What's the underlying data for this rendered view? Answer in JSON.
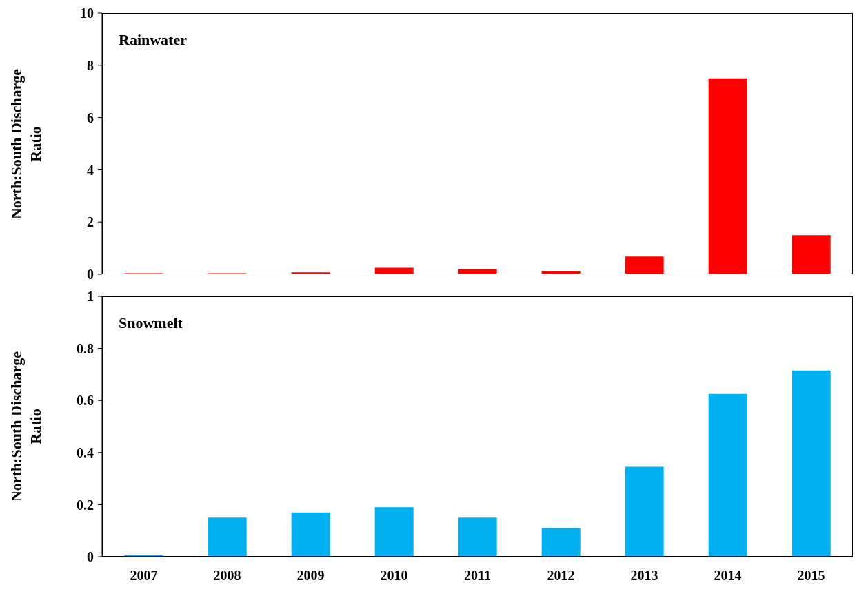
{
  "chart_data": [
    {
      "type": "bar",
      "annotations": [
        "Rainwater"
      ],
      "ylabel": "North:South Discharge Ratio",
      "categories": [
        "2007",
        "2008",
        "2009",
        "2010",
        "2011",
        "2012",
        "2013",
        "2014",
        "2015"
      ],
      "values": [
        0.04,
        0.04,
        0.07,
        0.25,
        0.2,
        0.12,
        0.68,
        7.5,
        1.5
      ],
      "color": "#ff0000",
      "ylim": [
        0,
        10
      ],
      "yticks": [
        0,
        2,
        4,
        6,
        8,
        10
      ],
      "grid": false,
      "tick_labels": "y"
    },
    {
      "type": "bar",
      "annotations": [
        "Snowmelt"
      ],
      "ylabel": "North:South Discharge Ratio",
      "categories": [
        "2007",
        "2008",
        "2009",
        "2010",
        "2011",
        "2012",
        "2013",
        "2014",
        "2015"
      ],
      "values": [
        0.005,
        0.15,
        0.17,
        0.19,
        0.15,
        0.11,
        0.345,
        0.625,
        0.715
      ],
      "color": "#00b0f0",
      "ylim": [
        0,
        1
      ],
      "yticks": [
        0,
        0.2,
        0.4,
        0.6,
        0.8,
        1
      ],
      "grid": false
    }
  ]
}
